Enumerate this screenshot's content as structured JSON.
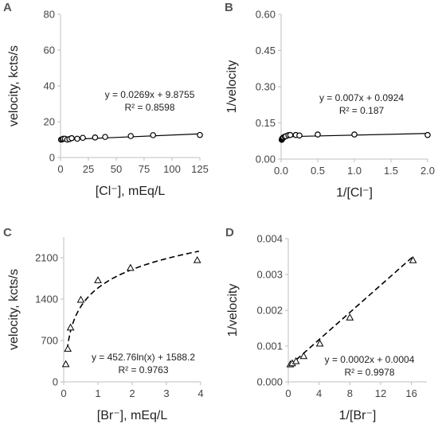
{
  "chart_data": [
    {
      "panel": "A",
      "type": "scatter",
      "xlabel": "[Cl⁻], mEq/L",
      "ylabel": "velocity, kcts/s",
      "xlim": [
        0,
        125
      ],
      "ylim": [
        0,
        80
      ],
      "xticks": [
        "0",
        "25",
        "50",
        "75",
        "100",
        "125"
      ],
      "yticks": [
        "0",
        "20",
        "40",
        "60",
        "80"
      ],
      "marker": "circle",
      "points": [
        [
          0.5,
          10.0
        ],
        [
          1.5,
          10.2
        ],
        [
          2.5,
          10.5
        ],
        [
          4,
          10.5
        ],
        [
          6,
          10.0
        ],
        [
          8,
          10.3
        ],
        [
          10,
          10.8
        ],
        [
          15,
          10.5
        ],
        [
          20,
          11.0
        ],
        [
          31,
          11.2
        ],
        [
          40,
          11.5
        ],
        [
          63,
          12.0
        ],
        [
          83,
          12.5
        ],
        [
          125,
          12.6
        ]
      ],
      "trendline": {
        "kind": "linear",
        "slope": 0.0269,
        "intercept": 9.8755,
        "style": "solid"
      },
      "equation": "y = 0.0269x + 9.8755",
      "r2": "R² = 0.8598"
    },
    {
      "panel": "B",
      "type": "scatter",
      "xlabel": "1/[Cl⁻]",
      "ylabel": "1/velocity",
      "xlim": [
        0,
        2.0
      ],
      "ylim": [
        0,
        0.6
      ],
      "xticks": [
        "0.0",
        "0.5",
        "1.0",
        "1.5",
        "2.0"
      ],
      "yticks": [
        "0.00",
        "0.15",
        "0.30",
        "0.45",
        "0.60"
      ],
      "marker": "circle",
      "points": [
        [
          0.008,
          0.08
        ],
        [
          0.012,
          0.082
        ],
        [
          0.016,
          0.086
        ],
        [
          0.024,
          0.088
        ],
        [
          0.032,
          0.09
        ],
        [
          0.05,
          0.093
        ],
        [
          0.065,
          0.095
        ],
        [
          0.1,
          0.099
        ],
        [
          0.125,
          0.1
        ],
        [
          0.2,
          0.1
        ],
        [
          0.25,
          0.098
        ],
        [
          0.5,
          0.102
        ],
        [
          1.0,
          0.102
        ],
        [
          2.0,
          0.1
        ]
      ],
      "trendline": {
        "kind": "linear",
        "slope": 0.007,
        "intercept": 0.0924,
        "style": "solid"
      },
      "equation": "y = 0.007x + 0.0924",
      "r2": "R² = 0.187"
    },
    {
      "panel": "C",
      "type": "scatter",
      "xlabel": "[Br⁻], mEq/L",
      "ylabel": "velocity, kcts/s",
      "xlim": [
        0,
        4
      ],
      "ylim": [
        0,
        2450
      ],
      "xticks": [
        "0",
        "1",
        "2",
        "3",
        "4"
      ],
      "yticks": [
        "0",
        "700",
        "1400",
        "2100"
      ],
      "ytick_values": [
        0,
        700,
        1400,
        2100
      ],
      "marker": "triangle",
      "points": [
        [
          0.06,
          300
        ],
        [
          0.12,
          560
        ],
        [
          0.2,
          920
        ],
        [
          0.5,
          1390
        ],
        [
          1.0,
          1720
        ],
        [
          1.95,
          1930
        ],
        [
          3.9,
          2060
        ]
      ],
      "trendline": {
        "kind": "log",
        "a": 452.76,
        "b": 1588.2,
        "style": "dashed",
        "xrange": [
          0.1,
          3.95
        ]
      },
      "equation": "y = 452.76ln(x) + 1588.2",
      "r2": "R² = 0.9763"
    },
    {
      "panel": "D",
      "type": "scatter",
      "xlabel": "1/[Br⁻]",
      "ylabel": "1/velocity",
      "xlim": [
        0,
        18
      ],
      "ylim": [
        0,
        0.004
      ],
      "xticks": [
        "0",
        "4",
        "8",
        "12",
        "16"
      ],
      "xtick_values": [
        0,
        4,
        8,
        12,
        16
      ],
      "yticks": [
        "0.000",
        "0.001",
        "0.002",
        "0.003",
        "0.004"
      ],
      "marker": "triangle",
      "points": [
        [
          0.26,
          0.00049
        ],
        [
          0.51,
          0.00052
        ],
        [
          1.0,
          0.00058
        ],
        [
          2.0,
          0.00072
        ],
        [
          4.1,
          0.00107
        ],
        [
          8.0,
          0.0018
        ],
        [
          16.2,
          0.0034
        ]
      ],
      "trendline": {
        "kind": "linear",
        "slope": 0.00019,
        "intercept": 0.00042,
        "style": "dashed",
        "xrange": [
          0.2,
          16.3
        ]
      },
      "equation": "y = 0.0002x + 0.0004",
      "r2": "R² = 0.9978"
    }
  ]
}
